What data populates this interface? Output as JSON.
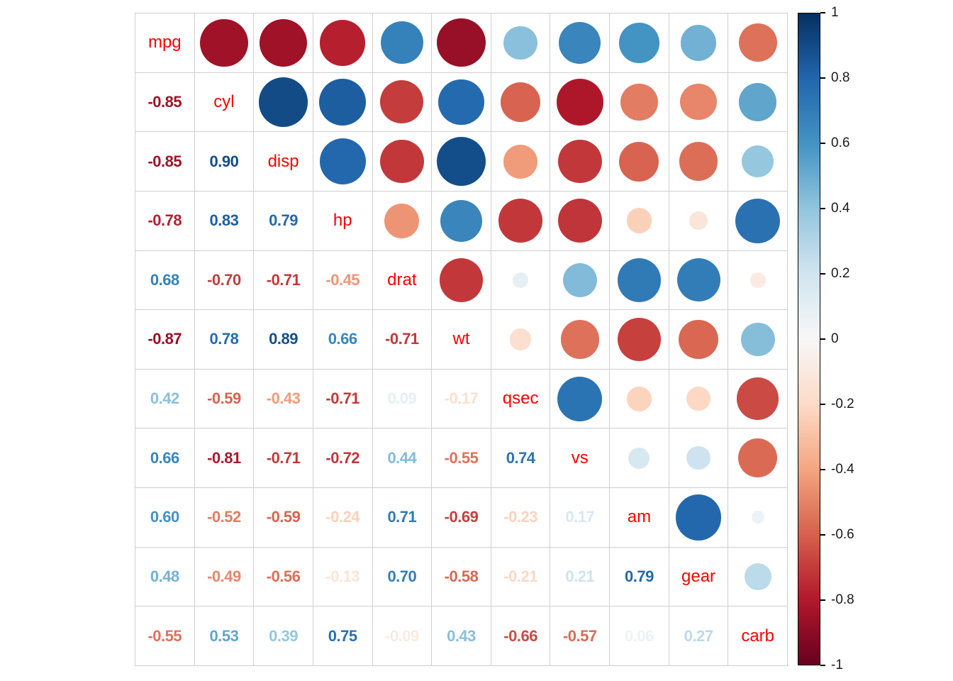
{
  "chart_data": {
    "type": "heatmap",
    "subtype": "correlation-matrix-mixed",
    "title": "",
    "variables": [
      "mpg",
      "cyl",
      "disp",
      "hp",
      "drat",
      "wt",
      "qsec",
      "vs",
      "am",
      "gear",
      "carb"
    ],
    "matrix": [
      [
        1.0,
        -0.85,
        -0.85,
        -0.78,
        0.68,
        -0.87,
        0.42,
        0.66,
        0.6,
        0.48,
        -0.55
      ],
      [
        -0.85,
        1.0,
        0.9,
        0.83,
        -0.7,
        0.78,
        -0.59,
        -0.81,
        -0.52,
        -0.49,
        0.53
      ],
      [
        -0.85,
        0.9,
        1.0,
        0.79,
        -0.71,
        0.89,
        -0.43,
        -0.71,
        -0.59,
        -0.56,
        0.39
      ],
      [
        -0.78,
        0.83,
        0.79,
        1.0,
        -0.45,
        0.66,
        -0.71,
        -0.72,
        -0.24,
        -0.13,
        0.75
      ],
      [
        0.68,
        -0.7,
        -0.71,
        -0.45,
        1.0,
        -0.71,
        0.09,
        0.44,
        0.71,
        0.7,
        -0.09
      ],
      [
        -0.87,
        0.78,
        0.89,
        0.66,
        -0.71,
        1.0,
        -0.17,
        -0.55,
        -0.69,
        -0.58,
        0.43
      ],
      [
        0.42,
        -0.59,
        -0.43,
        -0.71,
        0.09,
        -0.17,
        1.0,
        0.74,
        -0.23,
        -0.21,
        -0.66
      ],
      [
        0.66,
        -0.81,
        -0.71,
        -0.72,
        0.44,
        -0.55,
        0.74,
        1.0,
        0.17,
        0.21,
        -0.57
      ],
      [
        0.6,
        -0.52,
        -0.59,
        -0.24,
        0.71,
        -0.69,
        -0.23,
        0.17,
        1.0,
        0.79,
        0.06
      ],
      [
        0.48,
        -0.49,
        -0.56,
        -0.13,
        0.7,
        -0.58,
        -0.21,
        0.21,
        0.79,
        1.0,
        0.27
      ],
      [
        -0.55,
        0.53,
        0.39,
        0.75,
        -0.09,
        0.43,
        -0.66,
        -0.57,
        0.06,
        0.27,
        1.0
      ]
    ],
    "lower_triangle_display": "numbers",
    "upper_triangle_display": "circles",
    "diagonal_display": "variable-names",
    "circle_size_scale": "area-proportional-to-abs-corr",
    "legend_position": "right",
    "colorbar": {
      "min": -1,
      "max": 1,
      "ticks": [
        "1",
        "0.8",
        "0.6",
        "0.4",
        "0.2",
        "0",
        "-0.2",
        "-0.4",
        "-0.6",
        "-0.8",
        "-1"
      ]
    },
    "palette_neg_to_pos": [
      "#67001F",
      "#B2182B",
      "#D6604D",
      "#F4A582",
      "#FDDBC7",
      "#F7F7F7",
      "#D1E5F0",
      "#92C5DE",
      "#4393C3",
      "#2166AC",
      "#053061"
    ],
    "diag_label_color": "#FF0000",
    "grid_color": "#CFCFCF",
    "background_color": "#FFFFFF"
  }
}
